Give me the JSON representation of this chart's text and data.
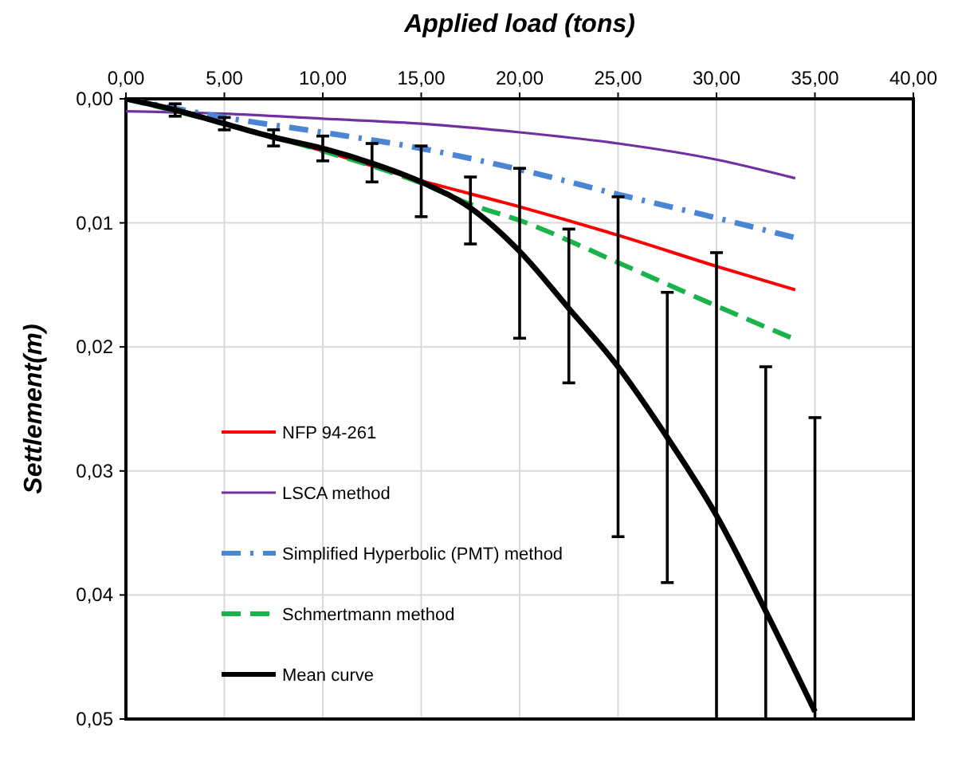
{
  "chart_data": {
    "type": "line",
    "xlabel": "Applied load (tons)",
    "ylabel": "Settlement(m)",
    "xlim": [
      0,
      40
    ],
    "ylim": [
      0.05,
      0
    ],
    "xticks": [
      {
        "value": 0,
        "label": "0,00"
      },
      {
        "value": 5,
        "label": "5,00"
      },
      {
        "value": 10,
        "label": "10,00"
      },
      {
        "value": 15,
        "label": "15,00"
      },
      {
        "value": 20,
        "label": "20,00"
      },
      {
        "value": 25,
        "label": "25,00"
      },
      {
        "value": 30,
        "label": "30,00"
      },
      {
        "value": 35,
        "label": "35,00"
      },
      {
        "value": 40,
        "label": "40,00"
      }
    ],
    "yticks": [
      {
        "value": 0,
        "label": "0,00"
      },
      {
        "value": 0.01,
        "label": "0,01"
      },
      {
        "value": 0.02,
        "label": "0,02"
      },
      {
        "value": 0.03,
        "label": "0,03"
      },
      {
        "value": 0.04,
        "label": "0,04"
      },
      {
        "value": 0.05,
        "label": "0,05"
      }
    ],
    "grid": true,
    "legend": "bottom left",
    "marker": "none",
    "series": [
      {
        "name": "NFP 94-261",
        "color": "#ff0000",
        "line_style": "solid",
        "x": [
          0,
          5,
          10,
          15,
          20,
          25,
          30,
          34
        ],
        "values": [
          0,
          null,
          0.0042,
          0.0066,
          0.0087,
          0.011,
          0.0135,
          0.0154
        ]
      },
      {
        "name": "LSCA method",
        "color": "#7030a0",
        "line_style": "solid",
        "x": [
          0,
          5,
          10,
          15,
          20,
          25,
          30,
          34
        ],
        "values": [
          0.001,
          0.0012,
          0.0016,
          0.002,
          0.0027,
          0.0036,
          0.0049,
          0.0064
        ]
      },
      {
        "name": "Simplified Hyperbolic (PMT) method",
        "color": "#4a86d4",
        "line_style": "dashdot",
        "x": [
          0,
          5,
          10,
          15,
          20,
          25,
          30,
          34
        ],
        "values": [
          0,
          0.0015,
          0.0027,
          0.004,
          0.0057,
          0.0077,
          0.0096,
          0.0112
        ]
      },
      {
        "name": "Schmertmann method",
        "color": "#18b34a",
        "line_style": "dashed",
        "x": [
          0,
          5,
          10,
          15,
          17.5,
          20,
          25,
          30,
          34
        ],
        "values": [
          0,
          0.002,
          0.0042,
          0.0068,
          0.0085,
          0.0098,
          0.0132,
          0.0167,
          0.0194
        ]
      },
      {
        "name": "Mean curve",
        "color": "#000000",
        "line_style": "solid",
        "x": [
          0,
          2.5,
          5,
          7.5,
          10,
          12.5,
          15,
          17.5,
          20,
          22.5,
          25,
          27.5,
          30,
          32.5,
          35
        ],
        "values": [
          0,
          0.0009,
          0.002,
          0.0031,
          0.004,
          0.0052,
          0.0067,
          0.0088,
          0.0123,
          0.0169,
          0.0216,
          0.0273,
          0.0336,
          0.0413,
          0.0494
        ],
        "errors": [
          null,
          [
            0.0004,
            0.0014
          ],
          [
            0.0015,
            0.0025
          ],
          [
            0.0025,
            0.0038
          ],
          [
            0.003,
            0.005
          ],
          [
            0.0036,
            0.0067
          ],
          [
            0.0038,
            0.0095
          ],
          [
            0.0063,
            0.0117
          ],
          [
            0.0056,
            0.0193
          ],
          [
            0.0105,
            0.0229
          ],
          [
            0.0079,
            0.0353
          ],
          [
            0.0156,
            0.039
          ],
          [
            0.0124,
            0.05
          ],
          [
            0.0216,
            0.05
          ],
          [
            0.0257,
            0.05
          ]
        ]
      }
    ]
  }
}
